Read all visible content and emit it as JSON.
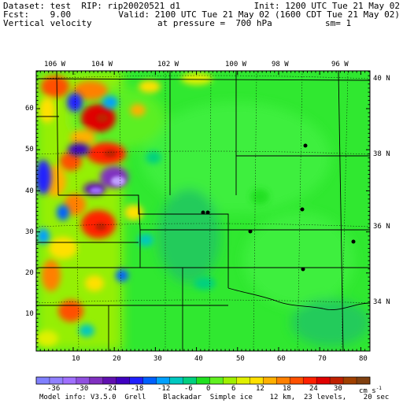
{
  "header": {
    "dataset": "Dataset: test  RIP: rip20020521 d1",
    "init": "Init: 1200 UTC Tue 21 May 02",
    "fcst": "Fcst:    9.00",
    "valid": "Valid: 2100 UTC Tue 21 May 02 (1600 CDT Tue 21 May 02)",
    "field": "Vertical velocity",
    "pressure": "at pressure =  700 hPa",
    "smoothing": "sm= 1"
  },
  "map": {
    "lon_labels": [
      "106 W",
      "104 W",
      "102 W",
      "100 W",
      "98 W",
      "96 W"
    ],
    "lat_labels": [
      "40 N",
      "38 N",
      "36 N",
      "34 N"
    ],
    "x_ticks": [
      "10",
      "20",
      "30",
      "40",
      "50",
      "60",
      "70",
      "80"
    ],
    "y_ticks": [
      "10",
      "20",
      "30",
      "40",
      "50",
      "60"
    ]
  },
  "colorbar": {
    "labels": [
      "-36",
      "-30",
      "-24",
      "-18",
      "-12",
      "-6",
      "0",
      "6",
      "12",
      "18",
      "24",
      "30"
    ],
    "units": "cm s",
    "units_exp": "-1",
    "colors": [
      "#8080ff",
      "#9080ff",
      "#a070ff",
      "#9050e0",
      "#8030c0",
      "#6010b0",
      "#4000c0",
      "#2020ff",
      "#0060ff",
      "#00a0ff",
      "#00c8c0",
      "#00d080",
      "#20e020",
      "#60f020",
      "#a0f000",
      "#e0f000",
      "#ffe000",
      "#ffb000",
      "#ff8000",
      "#ff5000",
      "#ff2000",
      "#e00000",
      "#c02000",
      "#a04000",
      "#804010"
    ]
  },
  "footer": {
    "model_info": "Model info: V3.5.0  Grell    Blackadar  Simple ice    12 km,  23 levels,    20 sec"
  }
}
